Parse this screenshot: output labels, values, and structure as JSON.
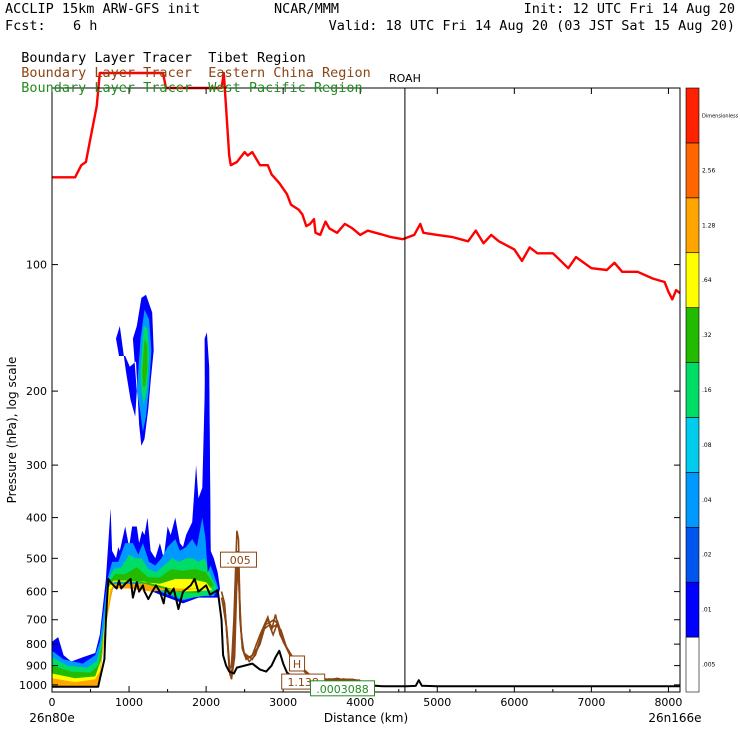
{
  "header": {
    "model": "ACCLIP 15km ARW-GFS init",
    "org": "NCAR/MMM",
    "init": "Init: 12 UTC Fri 14 Aug 20",
    "fcst_label": "Fcst:",
    "fcst_value": "6 h",
    "valid": "Valid: 18 UTC Fri 14 Aug 20 (03 JST Sat 15 Aug 20)"
  },
  "legend": [
    {
      "prefix": "Boundary Layer Tracer",
      "region": "Tibet Region",
      "color": "#000000"
    },
    {
      "prefix": "Boundary Layer Tracer",
      "region": "Eastern China Region",
      "color": "#8B4513"
    },
    {
      "prefix": "Boundary Layer Tracer",
      "region": "West Pacific Region",
      "color": "#228B22"
    }
  ],
  "chart_data": {
    "type": "area",
    "xlabel": "Distance (km)",
    "ylabel": "Pressure (hPa), log scale",
    "xlim": [
      0,
      8150
    ],
    "ylim": [
      1040,
      38
    ],
    "y_scale": "log",
    "x_ticks": [
      0,
      1000,
      2000,
      3000,
      4000,
      5000,
      6000,
      7000,
      8000
    ],
    "y_ticks": [
      100,
      200,
      300,
      400,
      500,
      600,
      700,
      800,
      900,
      1000
    ],
    "left_endpoint": "26n80e",
    "right_endpoint": "26n166e",
    "reference_line": {
      "label": "ROAH",
      "x": 4580
    },
    "annotations": [
      {
        "text": ".005",
        "x": 2420,
        "y": 505,
        "color": "#8B4513"
      },
      {
        "text": "H",
        "x": 3180,
        "y": 892,
        "color": "#8B4513"
      },
      {
        "text": "1.138",
        "x": 3260,
        "y": 985,
        "color": "#8B4513"
      },
      {
        "text": ".0003088",
        "x": 3770,
        "y": 1022,
        "color": "#228B22"
      }
    ],
    "colorbar": {
      "levels": [
        ".005",
        ".01",
        ".02",
        ".04",
        ".08",
        ".16",
        ".32",
        ".64",
        "1.28",
        "2.56",
        "Dimensionless"
      ],
      "colors": [
        "#ffffff",
        "#0000ff",
        "#0055ee",
        "#0099ff",
        "#00ccee",
        "#00dd66",
        "#22bb00",
        "#ffff00",
        "#ffa500",
        "#ff6600",
        "#ff2200"
      ]
    },
    "series": [
      {
        "color": "#ff0000",
        "points": [
          [
            0,
            62
          ],
          [
            300,
            62
          ],
          [
            380,
            58
          ],
          [
            440,
            57
          ],
          [
            500,
            50
          ],
          [
            580,
            42
          ],
          [
            620,
            35
          ],
          [
            1440,
            35
          ],
          [
            1480,
            38
          ],
          [
            2200,
            38
          ],
          [
            2230,
            35
          ],
          [
            2250,
            40
          ],
          [
            2300,
            55
          ],
          [
            2320,
            58
          ],
          [
            2400,
            57
          ],
          [
            2500,
            54
          ],
          [
            2540,
            55
          ],
          [
            2600,
            54
          ],
          [
            2700,
            58
          ],
          [
            2800,
            58
          ],
          [
            2850,
            61
          ],
          [
            2950,
            64
          ],
          [
            3050,
            68
          ],
          [
            3100,
            72
          ],
          [
            3200,
            74
          ],
          [
            3250,
            76
          ],
          [
            3300,
            81
          ],
          [
            3350,
            80
          ],
          [
            3400,
            78
          ],
          [
            3420,
            84
          ],
          [
            3480,
            85
          ],
          [
            3550,
            79
          ],
          [
            3600,
            82
          ],
          [
            3700,
            84
          ],
          [
            3800,
            80
          ],
          [
            3900,
            82
          ],
          [
            4000,
            85
          ],
          [
            4100,
            83
          ],
          [
            4200,
            84
          ],
          [
            4300,
            85
          ],
          [
            4400,
            86
          ],
          [
            4550,
            87
          ],
          [
            4700,
            85
          ],
          [
            4780,
            80
          ],
          [
            4820,
            84
          ],
          [
            5000,
            85
          ],
          [
            5200,
            86
          ],
          [
            5400,
            88
          ],
          [
            5500,
            83
          ],
          [
            5600,
            89
          ],
          [
            5700,
            85
          ],
          [
            5800,
            88
          ],
          [
            6000,
            92
          ],
          [
            6100,
            98
          ],
          [
            6200,
            91
          ],
          [
            6300,
            94
          ],
          [
            6500,
            94
          ],
          [
            6700,
            102
          ],
          [
            6800,
            96
          ],
          [
            7000,
            102
          ],
          [
            7200,
            103
          ],
          [
            7300,
            99
          ],
          [
            7400,
            104
          ],
          [
            7600,
            104
          ],
          [
            7800,
            108
          ],
          [
            7950,
            110
          ],
          [
            8000,
            116
          ],
          [
            8050,
            121
          ],
          [
            8100,
            115
          ],
          [
            8150,
            117
          ]
        ]
      },
      {
        "color": "#000000",
        "points": [
          [
            0,
            1010
          ],
          [
            600,
            1010
          ],
          [
            620,
            970
          ],
          [
            680,
            870
          ],
          [
            700,
            700
          ],
          [
            730,
            560
          ],
          [
            760,
            570
          ],
          [
            800,
            580
          ],
          [
            840,
            590
          ],
          [
            870,
            565
          ],
          [
            900,
            590
          ],
          [
            950,
            575
          ],
          [
            1020,
            560
          ],
          [
            1050,
            620
          ],
          [
            1100,
            570
          ],
          [
            1130,
            600
          ],
          [
            1180,
            580
          ],
          [
            1200,
            600
          ],
          [
            1250,
            625
          ],
          [
            1300,
            600
          ],
          [
            1350,
            580
          ],
          [
            1400,
            600
          ],
          [
            1450,
            640
          ],
          [
            1480,
            590
          ],
          [
            1530,
            610
          ],
          [
            1580,
            590
          ],
          [
            1640,
            660
          ],
          [
            1700,
            600
          ],
          [
            1800,
            580
          ],
          [
            1850,
            560
          ],
          [
            1900,
            600
          ],
          [
            1950,
            590
          ],
          [
            2000,
            580
          ],
          [
            2050,
            610
          ],
          [
            2150,
            595
          ],
          [
            2200,
            700
          ],
          [
            2220,
            850
          ],
          [
            2260,
            900
          ],
          [
            2300,
            930
          ],
          [
            2360,
            940
          ],
          [
            2400,
            910
          ],
          [
            2500,
            900
          ],
          [
            2600,
            890
          ],
          [
            2700,
            920
          ],
          [
            2780,
            930
          ],
          [
            2850,
            900
          ],
          [
            2900,
            860
          ],
          [
            2950,
            830
          ],
          [
            3000,
            890
          ],
          [
            3050,
            935
          ],
          [
            3100,
            950
          ],
          [
            3150,
            970
          ],
          [
            3200,
            985
          ],
          [
            3300,
            990
          ],
          [
            3400,
            995
          ],
          [
            3600,
            1000
          ],
          [
            3800,
            1003
          ],
          [
            4000,
            1005
          ],
          [
            4200,
            1005
          ],
          [
            4300,
            1008
          ],
          [
            4600,
            1008
          ],
          [
            4720,
            1006
          ],
          [
            4760,
            975
          ],
          [
            4800,
            1005
          ],
          [
            5000,
            1008
          ],
          [
            8150,
            1008
          ]
        ]
      }
    ]
  }
}
